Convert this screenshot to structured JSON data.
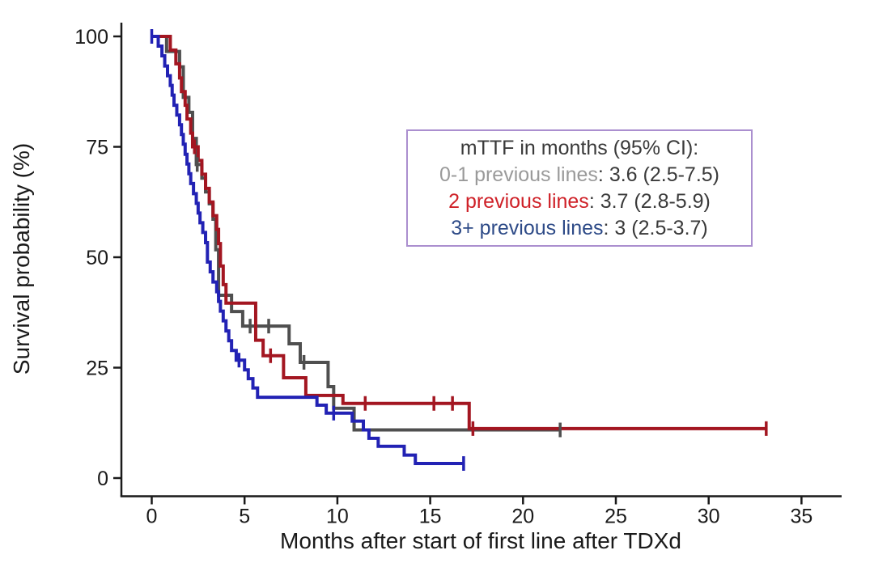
{
  "figure": {
    "background": "#ffffff"
  },
  "axes": {
    "x": {
      "label": "Months after start of first line after TDXd"
    },
    "y": {
      "label": "Survival probability (%)"
    }
  },
  "legend": {
    "title": "mTTF in months (95% CI):",
    "title_color": "#3a3a3a",
    "value_color": "#3a3a3a",
    "border_color": "#ab8fcf",
    "entries": [
      {
        "label": "0-1 previous lines",
        "value": ": 3.6 (2.5-7.5)",
        "color": "#9a9a9a"
      },
      {
        "label": "2 previous lines",
        "value": ": 3.7 (2.8-5.9)",
        "color": "#cf2128"
      },
      {
        "label": "3+ previous lines",
        "value": ": 3 (2.5-3.7)",
        "color": "#2d4a87"
      }
    ]
  },
  "chart_data": {
    "type": "line",
    "subtype": "kaplan-meier-step",
    "title": "",
    "xlabel": "Months after start of first line after TDXd",
    "ylabel": "Survival probability (%)",
    "xlim": [
      0,
      35
    ],
    "ylim": [
      0,
      100
    ],
    "x_ticks": [
      0,
      5,
      10,
      15,
      20,
      25,
      30,
      35
    ],
    "y_ticks": [
      0,
      25,
      50,
      75,
      100
    ],
    "grid": false,
    "legend_position": "upper right inside",
    "axis_color": "#1a1a1a",
    "series": [
      {
        "name": "0-1 previous lines",
        "color": "#4f4f4f",
        "median_ci": "3.6 (2.5-7.5)",
        "points": [
          [
            0,
            100
          ],
          [
            0.8,
            96.6
          ],
          [
            1.5,
            93.1
          ],
          [
            1.7,
            86.2
          ],
          [
            2.0,
            82.8
          ],
          [
            2.2,
            76.9
          ],
          [
            2.4,
            71.0
          ],
          [
            2.7,
            67.9
          ],
          [
            2.9,
            64.8
          ],
          [
            3.1,
            62.1
          ],
          [
            3.3,
            58.6
          ],
          [
            3.45,
            51.7
          ],
          [
            3.6,
            41.4
          ],
          [
            4.3,
            37.7
          ],
          [
            4.9,
            34.4
          ],
          [
            7.4,
            30.4
          ],
          [
            8.0,
            26.2
          ],
          [
            9.5,
            20.7
          ],
          [
            9.8,
            15.8
          ],
          [
            10.9,
            10.9
          ],
          [
            22,
            10.9
          ]
        ],
        "censors": [
          [
            2.45,
            71.0
          ],
          [
            5.3,
            34.4
          ],
          [
            6.3,
            34.4
          ],
          [
            8.2,
            26.2
          ],
          [
            22,
            10.9
          ]
        ]
      },
      {
        "name": "2 previous lines",
        "color": "#a31621",
        "median_ci": "3.7 (2.8-5.9)",
        "points": [
          [
            0,
            100
          ],
          [
            1.0,
            96.9
          ],
          [
            1.3,
            93.8
          ],
          [
            1.5,
            90.6
          ],
          [
            1.6,
            87.5
          ],
          [
            1.8,
            84.4
          ],
          [
            1.9,
            81.3
          ],
          [
            2.1,
            78.1
          ],
          [
            2.2,
            75.0
          ],
          [
            2.5,
            71.9
          ],
          [
            2.7,
            68.8
          ],
          [
            2.9,
            65.6
          ],
          [
            3.1,
            62.5
          ],
          [
            3.3,
            59.4
          ],
          [
            3.5,
            56.3
          ],
          [
            3.6,
            53.1
          ],
          [
            3.7,
            48.0
          ],
          [
            3.85,
            43.8
          ],
          [
            4.0,
            39.6
          ],
          [
            5.6,
            31.2
          ],
          [
            6.0,
            27.7
          ],
          [
            7.1,
            22.7
          ],
          [
            8.3,
            18.7
          ],
          [
            10.3,
            16.9
          ],
          [
            17.1,
            11.2
          ],
          [
            33.1,
            11.2
          ]
        ],
        "censors": [
          [
            2.3,
            75.0
          ],
          [
            6.4,
            27.7
          ],
          [
            11.5,
            16.9
          ],
          [
            15.2,
            16.9
          ],
          [
            16.2,
            16.9
          ],
          [
            17.3,
            11.2
          ],
          [
            33.1,
            11.2
          ]
        ]
      },
      {
        "name": "3+ previous lines",
        "color": "#2222b4",
        "median_ci": "3 (2.5-3.7)",
        "points": [
          [
            0,
            100
          ],
          [
            0.35,
            97.8
          ],
          [
            0.55,
            95.6
          ],
          [
            0.7,
            93.3
          ],
          [
            0.85,
            91.1
          ],
          [
            1.0,
            88.9
          ],
          [
            1.1,
            86.7
          ],
          [
            1.2,
            84.4
          ],
          [
            1.35,
            82.2
          ],
          [
            1.5,
            80.0
          ],
          [
            1.6,
            77.8
          ],
          [
            1.7,
            75.6
          ],
          [
            1.8,
            73.3
          ],
          [
            1.9,
            71.1
          ],
          [
            2.0,
            68.9
          ],
          [
            2.1,
            66.7
          ],
          [
            2.25,
            64.4
          ],
          [
            2.4,
            62.2
          ],
          [
            2.5,
            60.0
          ],
          [
            2.6,
            57.8
          ],
          [
            2.75,
            55.6
          ],
          [
            2.9,
            53.3
          ],
          [
            3.0,
            48.9
          ],
          [
            3.15,
            46.7
          ],
          [
            3.3,
            44.4
          ],
          [
            3.5,
            42.2
          ],
          [
            3.6,
            40.0
          ],
          [
            3.7,
            37.8
          ],
          [
            3.85,
            35.6
          ],
          [
            4.0,
            33.3
          ],
          [
            4.15,
            31.1
          ],
          [
            4.3,
            28.9
          ],
          [
            4.55,
            26.7
          ],
          [
            5.0,
            24.5
          ],
          [
            5.2,
            22.5
          ],
          [
            5.45,
            20.4
          ],
          [
            5.7,
            18.3
          ],
          [
            8.9,
            16.5
          ],
          [
            9.4,
            14.7
          ],
          [
            10.8,
            12.9
          ],
          [
            11.4,
            10.9
          ],
          [
            11.7,
            9.0
          ],
          [
            12.2,
            7.2
          ],
          [
            13.6,
            5.2
          ],
          [
            14.2,
            3.3
          ],
          [
            16.8,
            3.3
          ]
        ],
        "censors": [
          [
            0,
            100
          ],
          [
            4.7,
            26.7
          ],
          [
            9.8,
            14.7
          ],
          [
            16.8,
            3.3
          ]
        ]
      }
    ]
  }
}
